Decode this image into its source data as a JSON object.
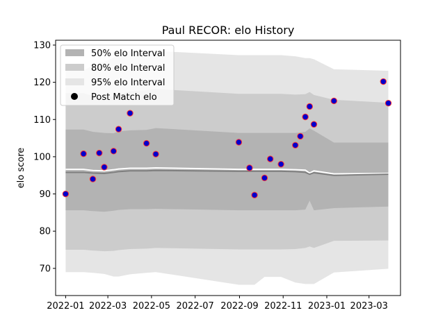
{
  "chart_data": {
    "type": "scatter",
    "title": "Paul RECOR: elo History",
    "xlabel": "",
    "ylabel": "elo score",
    "x_axis": "date",
    "xlim": [
      "2021-12-18",
      "2023-04-14"
    ],
    "ylim": [
      62.7,
      131.3
    ],
    "xticks": [
      "2022-01",
      "2022-03",
      "2022-05",
      "2022-07",
      "2022-09",
      "2022-11",
      "2023-01",
      "2023-03"
    ],
    "yticks": [
      70,
      80,
      90,
      100,
      110,
      120,
      130
    ],
    "grid": false,
    "legend": {
      "placement": "top-left",
      "entries": [
        "50% elo Interval",
        "80% elo Interval",
        "95% elo Interval",
        "Post Match elo"
      ]
    },
    "colors": {
      "interval_50": "#b3b3b3",
      "interval_80": "#cccccc",
      "interval_95": "#e5e5e5",
      "mean_line": "#7f7f7f",
      "median_line": "#ffffff",
      "marker_face": "#0000cc",
      "marker_edge": "#ff3333"
    },
    "post_match_elo": [
      {
        "x": "2022-01-01",
        "y": 90.0
      },
      {
        "x": "2022-01-26",
        "y": 100.8
      },
      {
        "x": "2022-02-08",
        "y": 94.0
      },
      {
        "x": "2022-02-17",
        "y": 101.0
      },
      {
        "x": "2022-02-24",
        "y": 97.2
      },
      {
        "x": "2022-03-09",
        "y": 101.5
      },
      {
        "x": "2022-03-16",
        "y": 107.4
      },
      {
        "x": "2022-04-01",
        "y": 111.7
      },
      {
        "x": "2022-04-24",
        "y": 103.6
      },
      {
        "x": "2022-05-07",
        "y": 100.7
      },
      {
        "x": "2022-08-31",
        "y": 103.9
      },
      {
        "x": "2022-09-15",
        "y": 97.0
      },
      {
        "x": "2022-09-22",
        "y": 89.7
      },
      {
        "x": "2022-10-06",
        "y": 94.3
      },
      {
        "x": "2022-10-14",
        "y": 99.4
      },
      {
        "x": "2022-10-29",
        "y": 98.0
      },
      {
        "x": "2022-11-18",
        "y": 103.1
      },
      {
        "x": "2022-11-25",
        "y": 105.5
      },
      {
        "x": "2022-12-02",
        "y": 110.7
      },
      {
        "x": "2022-12-08",
        "y": 113.5
      },
      {
        "x": "2022-12-14",
        "y": 108.7
      },
      {
        "x": "2023-01-11",
        "y": 115.0
      },
      {
        "x": "2023-03-21",
        "y": 120.2
      },
      {
        "x": "2023-03-28",
        "y": 114.4
      }
    ],
    "interval_series": [
      {
        "x": "2022-01-01",
        "mean": 95.8,
        "median": 96.6,
        "lo50": 85.6,
        "hi50": 107.3,
        "lo80": 75.0,
        "hi80": 117.1,
        "lo95": 69.0,
        "hi95": 123.2
      },
      {
        "x": "2022-01-26",
        "mean": 95.8,
        "median": 96.6,
        "lo50": 85.6,
        "hi50": 107.3,
        "lo80": 75.0,
        "hi80": 117.1,
        "lo95": 69.0,
        "hi95": 123.2
      },
      {
        "x": "2022-02-08",
        "mean": 95.6,
        "median": 96.3,
        "lo50": 85.4,
        "hi50": 106.7,
        "lo80": 74.8,
        "hi80": 116.3,
        "lo95": 68.8,
        "hi95": 124.5
      },
      {
        "x": "2022-02-24",
        "mean": 95.5,
        "median": 96.2,
        "lo50": 85.2,
        "hi50": 106.4,
        "lo80": 74.6,
        "hi80": 116.0,
        "lo95": 68.5,
        "hi95": 125.5
      },
      {
        "x": "2022-03-09",
        "mean": 95.8,
        "median": 96.5,
        "lo50": 85.5,
        "hi50": 106.3,
        "lo80": 74.7,
        "hi80": 116.2,
        "lo95": 67.8,
        "hi95": 126.6
      },
      {
        "x": "2022-03-16",
        "mean": 96.0,
        "median": 96.7,
        "lo50": 85.7,
        "hi50": 106.8,
        "lo80": 74.9,
        "hi80": 116.7,
        "lo95": 67.8,
        "hi95": 127.4
      },
      {
        "x": "2022-04-01",
        "mean": 96.2,
        "median": 96.9,
        "lo50": 85.9,
        "hi50": 107.1,
        "lo80": 75.2,
        "hi80": 117.6,
        "lo95": 68.4,
        "hi95": 128.4
      },
      {
        "x": "2022-04-24",
        "mean": 96.2,
        "median": 96.9,
        "lo50": 85.9,
        "hi50": 107.2,
        "lo80": 75.3,
        "hi80": 117.9,
        "lo95": 68.8,
        "hi95": 128.5
      },
      {
        "x": "2022-05-07",
        "mean": 96.3,
        "median": 97.0,
        "lo50": 86.0,
        "hi50": 107.7,
        "lo80": 75.5,
        "hi80": 118.2,
        "lo95": 69.0,
        "hi95": 128.4
      },
      {
        "x": "2022-08-31",
        "mean": 96.1,
        "median": 96.6,
        "lo50": 85.6,
        "hi50": 106.4,
        "lo80": 75.1,
        "hi80": 116.9,
        "lo95": 65.6,
        "hi95": 127.3
      },
      {
        "x": "2022-09-22",
        "mean": 96.1,
        "median": 96.6,
        "lo50": 85.6,
        "hi50": 106.4,
        "lo80": 75.1,
        "hi80": 116.9,
        "lo95": 65.6,
        "hi95": 127.3
      },
      {
        "x": "2022-10-06",
        "mean": 96.1,
        "median": 96.6,
        "lo50": 85.6,
        "hi50": 106.4,
        "lo80": 75.1,
        "hi80": 116.9,
        "lo95": 67.7,
        "hi95": 127.3
      },
      {
        "x": "2022-10-29",
        "mean": 96.1,
        "median": 96.6,
        "lo50": 85.6,
        "hi50": 106.4,
        "lo80": 75.1,
        "hi80": 116.9,
        "lo95": 67.7,
        "hi95": 127.3
      },
      {
        "x": "2022-11-18",
        "mean": 96.0,
        "median": 96.5,
        "lo50": 85.6,
        "hi50": 106.4,
        "lo80": 75.2,
        "hi80": 116.7,
        "lo95": 66.2,
        "hi95": 127.0
      },
      {
        "x": "2022-12-02",
        "mean": 95.8,
        "median": 96.4,
        "lo50": 85.8,
        "hi50": 106.7,
        "lo80": 75.5,
        "hi80": 116.8,
        "lo95": 65.8,
        "hi95": 126.5
      },
      {
        "x": "2022-12-08",
        "mean": 95.3,
        "median": 95.6,
        "lo50": 88.2,
        "hi50": 107.6,
        "lo80": 75.9,
        "hi80": 117.4,
        "lo95": 65.8,
        "hi95": 126.5
      },
      {
        "x": "2022-12-14",
        "mean": 95.7,
        "median": 96.2,
        "lo50": 85.6,
        "hi50": 107.0,
        "lo80": 75.5,
        "hi80": 116.6,
        "lo95": 65.8,
        "hi95": 126.2
      },
      {
        "x": "2023-01-11",
        "mean": 95.0,
        "median": 95.4,
        "lo50": 86.2,
        "hi50": 103.8,
        "lo80": 77.4,
        "hi80": 115.3,
        "lo95": 68.9,
        "hi95": 123.5
      },
      {
        "x": "2023-03-28",
        "mean": 95.3,
        "median": 95.5,
        "lo50": 86.6,
        "hi50": 103.8,
        "lo80": 77.5,
        "hi80": 114.5,
        "lo95": 69.9,
        "hi95": 123.1
      }
    ]
  }
}
